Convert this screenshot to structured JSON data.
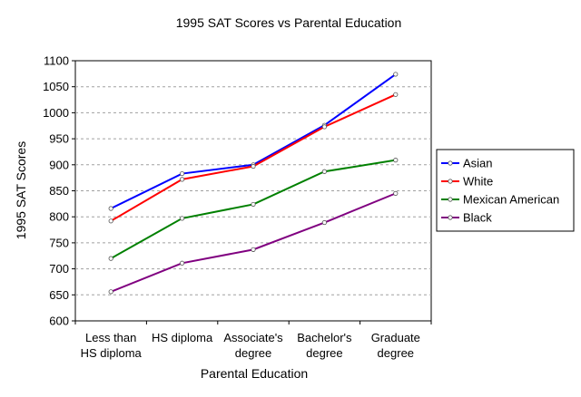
{
  "chart_data": {
    "type": "line",
    "title": "1995 SAT Scores vs Parental Education",
    "xlabel": "Parental Education",
    "ylabel": "1995 SAT Scores",
    "categories": [
      [
        "Less than",
        "HS diploma"
      ],
      [
        "HS diploma"
      ],
      [
        "Associate's",
        "degree"
      ],
      [
        "Bachelor's",
        "degree"
      ],
      [
        "Graduate",
        "degree"
      ]
    ],
    "ylim": [
      600,
      1100
    ],
    "yticks": [
      600,
      650,
      700,
      750,
      800,
      850,
      900,
      950,
      1000,
      1050,
      1100
    ],
    "grid": "horizontal dashed",
    "legend_position": "right",
    "series": [
      {
        "name": "Asian",
        "color": "#0000ff",
        "values": [
          816,
          883,
          900,
          976,
          1074
        ]
      },
      {
        "name": "White",
        "color": "#ff0000",
        "values": [
          792,
          872,
          897,
          973,
          1035
        ]
      },
      {
        "name": "Mexican American",
        "color": "#008000",
        "values": [
          720,
          797,
          824,
          887,
          909
        ]
      },
      {
        "name": "Black",
        "color": "#800080",
        "values": [
          656,
          711,
          737,
          789,
          845
        ]
      }
    ]
  }
}
